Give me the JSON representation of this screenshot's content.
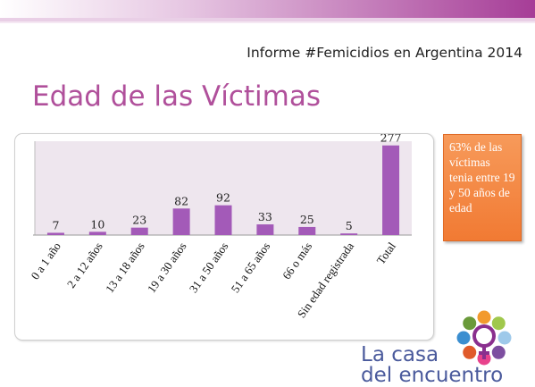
{
  "header": {
    "report_title": "Informe #Femicidios en Argentina 2014",
    "slide_title": "Edad de las Víctimas"
  },
  "callout": {
    "text": "63% de las víctimas tenia entre 19 y 50 años  de edad",
    "color": "#f17a33"
  },
  "logo": {
    "line1": "La casa",
    "line2": "del encuentro",
    "text_color": "#4a5a9c",
    "dot_colors": [
      "#f29a2e",
      "#a0c84c",
      "#9ec9ea",
      "#7d4ea0",
      "#e8428c",
      "#e05a2a",
      "#3b8ed0",
      "#6a9a3a"
    ]
  },
  "colors": {
    "accent": "#b0509b",
    "bar": "#a35ab8",
    "top_bar": "#a63d97"
  },
  "chart_data": {
    "type": "bar",
    "categories": [
      "0 a 1 año",
      "2 a 12 años",
      "13 a 18 años",
      "19 a 30 años",
      "31 a 50 años",
      "51 a 65 años",
      "66  o más",
      "Sin edad registrada",
      "Total"
    ],
    "values": [
      7,
      10,
      23,
      82,
      92,
      33,
      25,
      5,
      277
    ],
    "title": "",
    "xlabel": "",
    "ylabel": "",
    "ylim": [
      0,
      290
    ],
    "grid": false,
    "legend": "none"
  }
}
